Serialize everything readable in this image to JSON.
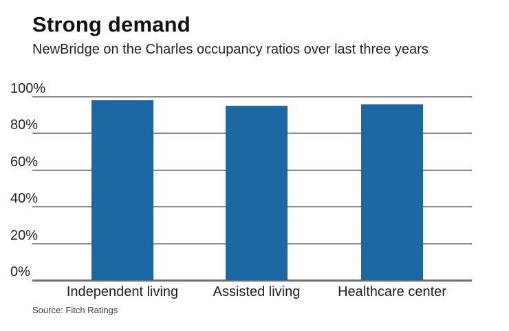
{
  "chart_data": {
    "type": "bar",
    "title": "Strong demand",
    "subtitle": "NewBridge on the Charles occupancy ratios over last three years",
    "categories": [
      "Independent living",
      "Assisted living",
      "Healthcare center"
    ],
    "values": [
      98,
      95,
      96
    ],
    "unit": "%",
    "ylim": [
      0,
      100
    ],
    "yticks": [
      0,
      20,
      40,
      60,
      80,
      100
    ],
    "ytick_labels": [
      "0%",
      "20%",
      "40%",
      "60%",
      "80%",
      "100%"
    ],
    "grid": true,
    "legend": "none",
    "bar_color": "#1c68a2",
    "source": "Source: Fitch Ratings"
  },
  "colors": {
    "bar": "#1c68a2",
    "gridline": "#8d8d8d",
    "axis_line": "#6f6f6f",
    "title_text": "#111111",
    "body_text": "#222222"
  }
}
